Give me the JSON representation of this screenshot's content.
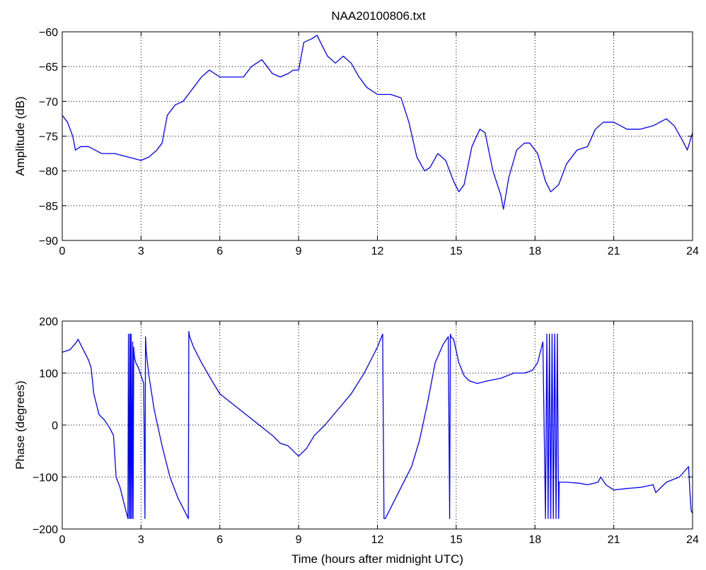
{
  "figure": {
    "title": "NAA20100806.txt"
  },
  "chart_data": [
    {
      "type": "line",
      "title": "NAA20100806.txt",
      "xlabel": "",
      "ylabel": "Amplitude (dB)",
      "xlim": [
        0,
        24
      ],
      "ylim": [
        -90,
        -60
      ],
      "xticks": [
        0,
        3,
        6,
        9,
        12,
        15,
        18,
        21,
        24
      ],
      "yticks": [
        -90,
        -85,
        -80,
        -75,
        -70,
        -65,
        -60
      ],
      "grid": true,
      "line_color": "#0000ff",
      "series": [
        {
          "x": [
            0,
            0.2,
            0.4,
            0.5,
            0.7,
            1.0,
            1.5,
            2.0,
            2.5,
            3.0,
            3.3,
            3.6,
            3.8,
            4.0,
            4.3,
            4.6,
            5.0,
            5.3,
            5.6,
            5.8,
            6.0,
            6.3,
            6.6,
            6.9,
            7.2,
            7.4,
            7.6,
            7.8,
            8.0,
            8.3,
            8.6,
            8.8,
            9.0,
            9.2,
            9.5,
            9.7,
            9.9,
            10.1,
            10.4,
            10.7,
            11.0,
            11.3,
            11.6,
            12.0,
            12.5,
            12.9,
            13.2,
            13.5,
            13.8,
            14.0,
            14.3,
            14.6,
            14.9,
            15.1,
            15.3,
            15.6,
            15.9,
            16.1,
            16.4,
            16.7,
            16.8,
            17.0,
            17.3,
            17.6,
            17.8,
            18.1,
            18.4,
            18.6,
            18.9,
            19.2,
            19.6,
            20.0,
            20.3,
            20.6,
            21.0,
            21.5,
            22.0,
            22.5,
            23.0,
            23.3,
            23.6,
            23.8,
            24.0
          ],
          "y": [
            -72,
            -73,
            -75,
            -77,
            -76.5,
            -76.5,
            -77.5,
            -77.5,
            -78,
            -78.5,
            -78,
            -77,
            -76,
            -72,
            -70.5,
            -70,
            -68,
            -66.5,
            -65.5,
            -66,
            -66.5,
            -66.5,
            -66.5,
            -66.5,
            -65,
            -64.5,
            -64,
            -65,
            -66,
            -66.5,
            -66,
            -65.5,
            -65.5,
            -61.5,
            -61,
            -60.5,
            -62,
            -63.5,
            -64.5,
            -63.5,
            -64.5,
            -66.5,
            -68,
            -69,
            -69,
            -69.5,
            -73,
            -78,
            -80,
            -79.5,
            -77.5,
            -78.5,
            -81.5,
            -83,
            -82,
            -76.5,
            -74,
            -74.5,
            -80,
            -83.5,
            -85.5,
            -81,
            -77,
            -76,
            -76,
            -77.5,
            -81.5,
            -83,
            -82,
            -79,
            -77,
            -76.5,
            -74,
            -73,
            -73,
            -74,
            -74,
            -73.5,
            -72.5,
            -73.5,
            -75.5,
            -77,
            -74.5
          ]
        }
      ]
    },
    {
      "type": "line",
      "title": "",
      "xlabel": "Time (hours after midnight UTC)",
      "ylabel": "Phase (degrees)",
      "xlim": [
        0,
        24
      ],
      "ylim": [
        -200,
        200
      ],
      "xticks": [
        0,
        3,
        6,
        9,
        12,
        15,
        18,
        21,
        24
      ],
      "yticks": [
        -200,
        -100,
        0,
        100,
        200
      ],
      "grid": true,
      "line_color": "#0000ff",
      "series": [
        {
          "x": [
            0,
            0.3,
            0.55,
            0.6,
            0.8,
            1.0,
            1.1,
            1.2,
            1.4,
            1.6,
            1.8,
            1.95,
            2.0,
            2.05,
            2.2,
            2.35,
            2.45,
            2.5,
            2.52,
            2.55,
            2.58,
            2.6,
            2.62,
            2.65,
            2.68,
            2.7,
            2.72,
            2.75,
            2.8,
            2.9,
            3.0,
            3.1,
            3.15,
            3.17,
            3.2,
            3.3,
            3.5,
            3.8,
            4.1,
            4.4,
            4.6,
            4.8,
            4.82,
            4.85,
            5.0,
            5.3,
            5.7,
            6.0,
            6.5,
            7.0,
            7.5,
            8.0,
            8.3,
            8.6,
            8.9,
            9.0,
            9.1,
            9.3,
            9.6,
            10.0,
            10.5,
            11.0,
            11.5,
            11.8,
            12.0,
            12.2,
            12.25,
            12.3,
            12.5,
            12.9,
            13.3,
            13.6,
            13.9,
            14.2,
            14.5,
            14.7,
            14.75,
            14.78,
            14.8,
            14.9,
            15.1,
            15.3,
            15.5,
            15.8,
            16.2,
            16.7,
            17.2,
            17.6,
            17.9,
            18.1,
            18.3,
            18.4,
            18.45,
            18.5,
            18.55,
            18.6,
            18.65,
            18.7,
            18.75,
            18.8,
            18.85,
            18.9,
            18.92,
            19.2,
            19.7,
            20.0,
            20.4,
            20.5,
            20.7,
            21.0,
            21.5,
            22.0,
            22.5,
            22.6,
            23.0,
            23.5,
            23.85,
            23.9,
            23.95,
            24.0
          ],
          "y": [
            140,
            145,
            160,
            165,
            145,
            125,
            110,
            60,
            20,
            10,
            -5,
            -20,
            -60,
            -100,
            -120,
            -150,
            -170,
            -180,
            175,
            -180,
            175,
            -180,
            175,
            -180,
            160,
            -180,
            150,
            130,
            120,
            110,
            95,
            80,
            -180,
            170,
            140,
            95,
            30,
            -40,
            -100,
            -140,
            -160,
            -180,
            180,
            170,
            150,
            120,
            85,
            60,
            40,
            20,
            0,
            -20,
            -35,
            -40,
            -55,
            -60,
            -55,
            -45,
            -20,
            0,
            30,
            60,
            100,
            130,
            150,
            175,
            -180,
            -180,
            -160,
            -120,
            -80,
            -30,
            40,
            120,
            155,
            170,
            -180,
            175,
            170,
            165,
            120,
            95,
            85,
            80,
            85,
            90,
            100,
            100,
            105,
            120,
            160,
            -180,
            175,
            -180,
            175,
            -180,
            175,
            -180,
            175,
            -180,
            175,
            -180,
            -110,
            -110,
            -112,
            -115,
            -110,
            -100,
            -115,
            -125,
            -122,
            -120,
            -115,
            -130,
            -110,
            -100,
            -80,
            -130,
            -165,
            -170
          ]
        }
      ]
    }
  ]
}
